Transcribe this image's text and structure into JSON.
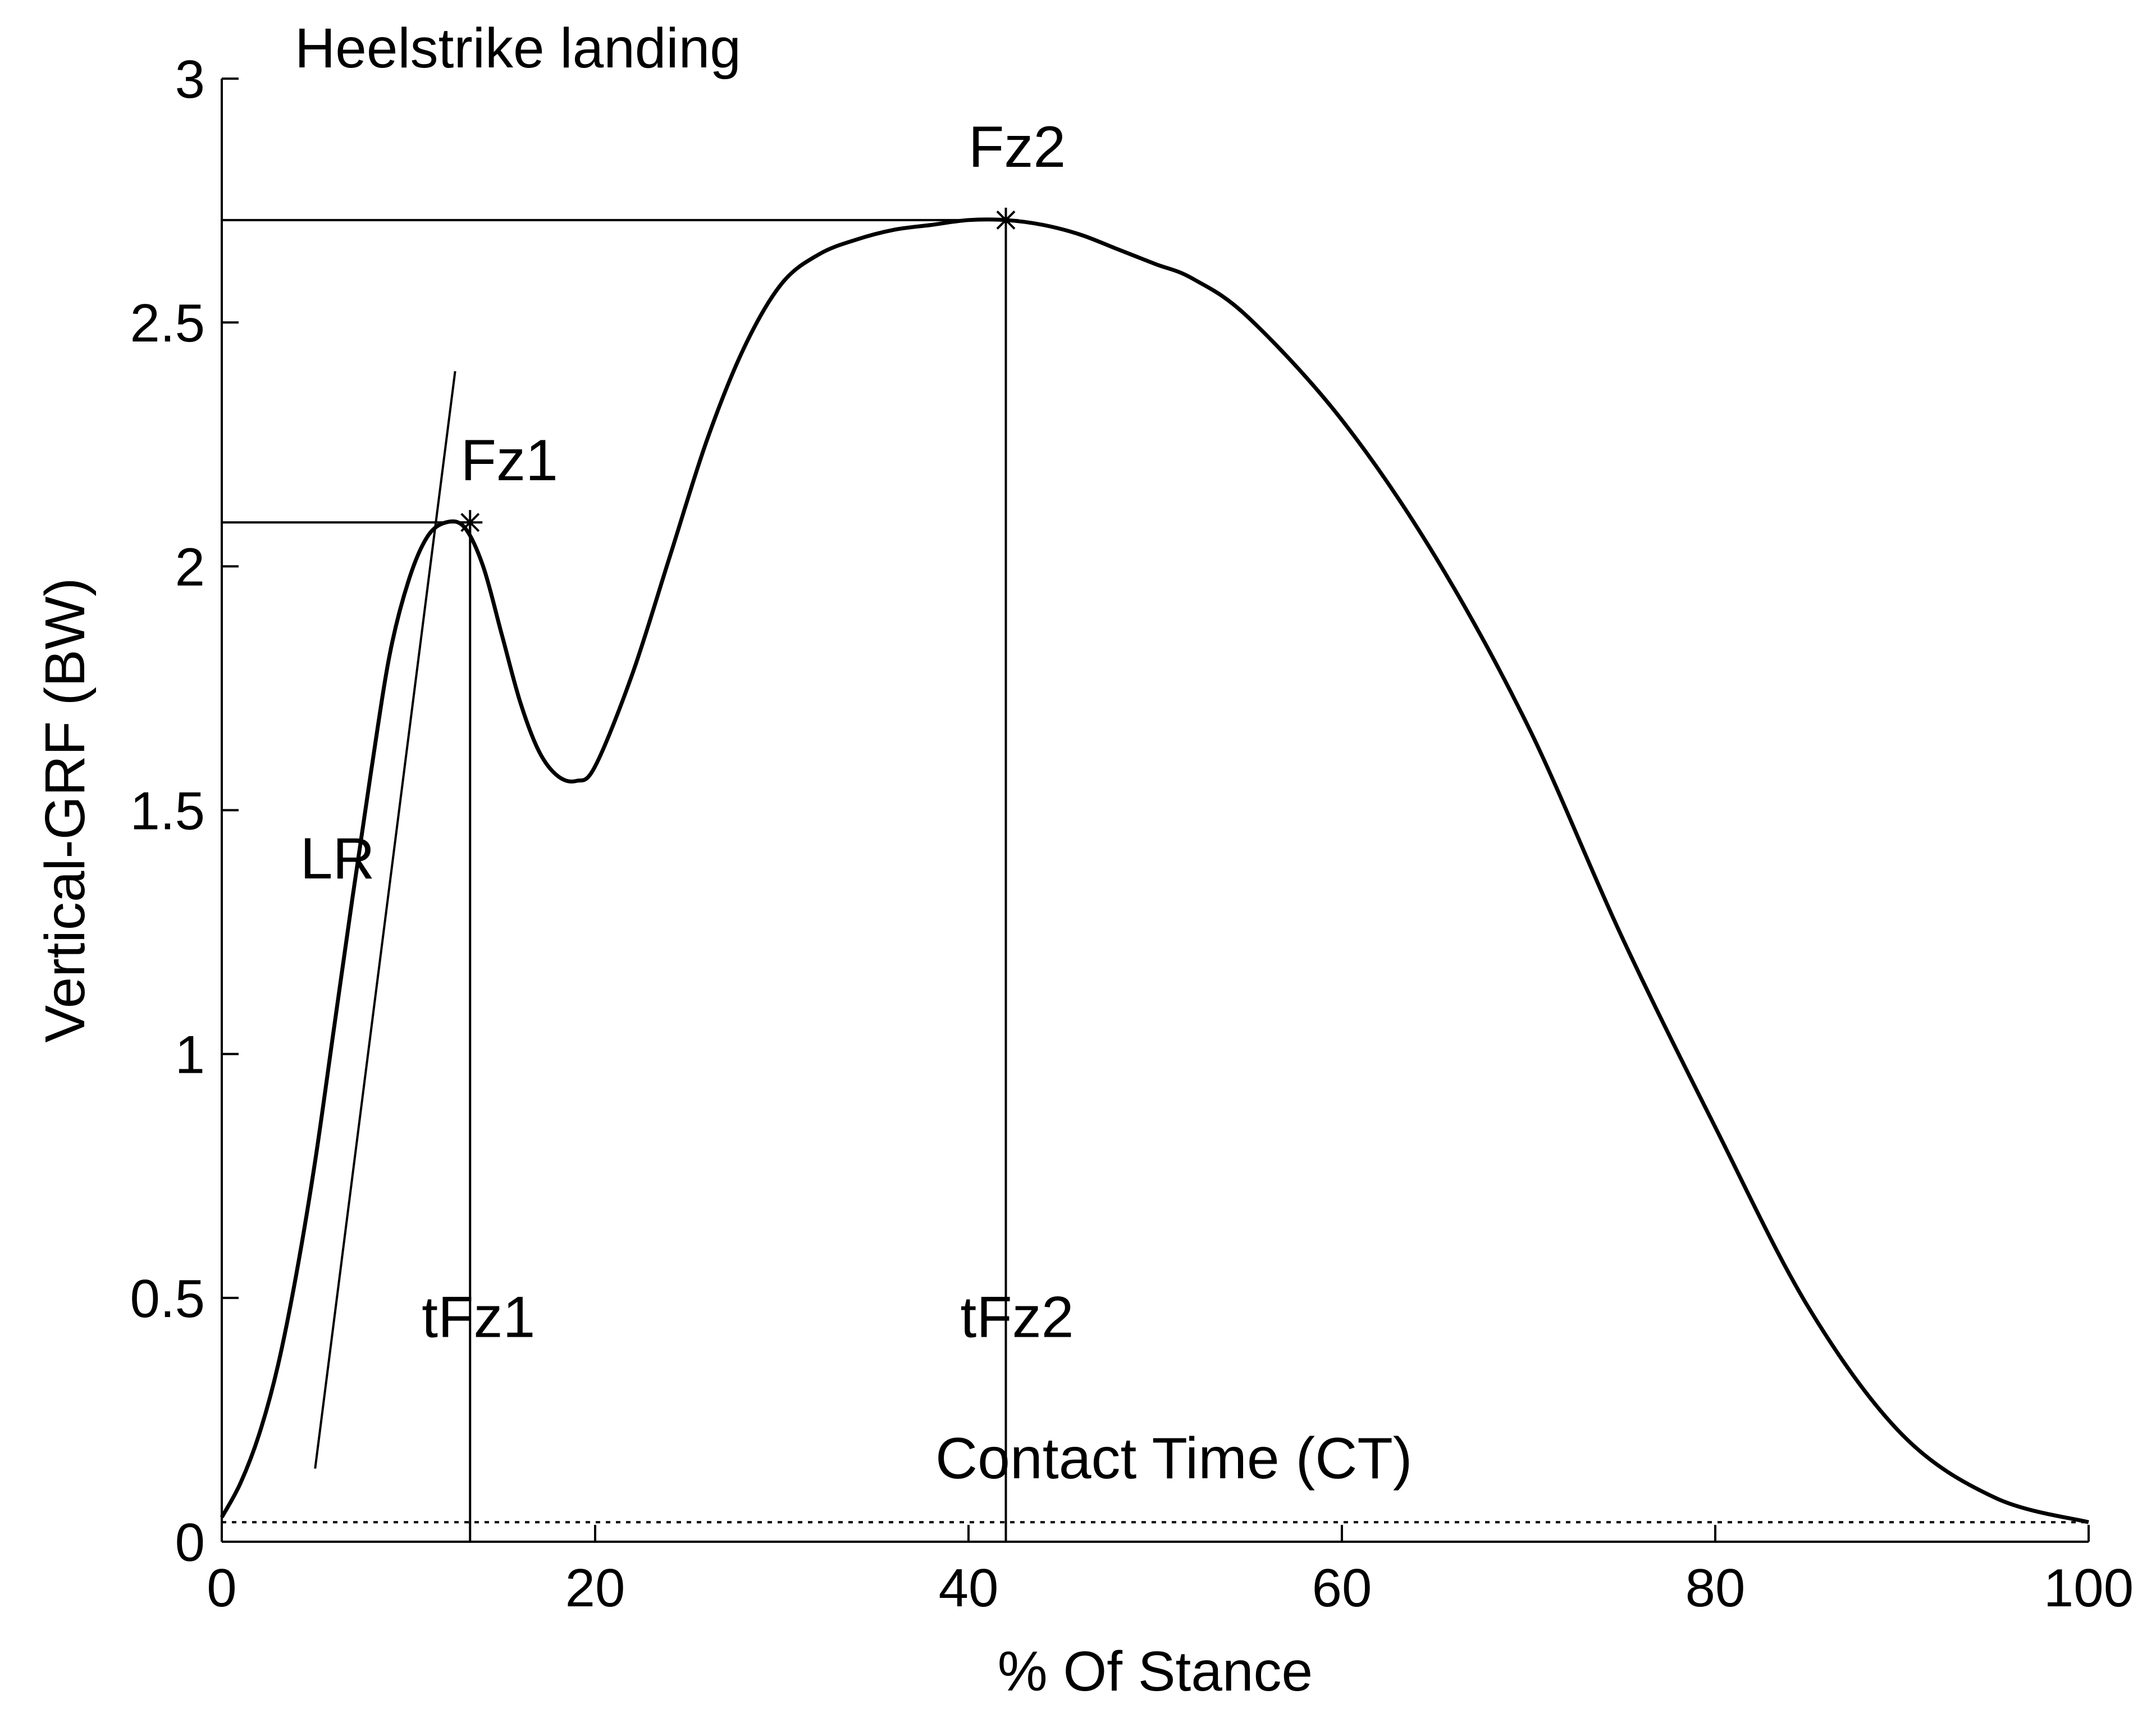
{
  "chart_data": {
    "type": "line",
    "title": "Heelstrike landing",
    "xlabel": "% Of Stance",
    "ylabel": "Vertical-GRF (BW)",
    "xlim": [
      0,
      100
    ],
    "ylim": [
      0,
      3
    ],
    "xticks": [
      0,
      20,
      40,
      60,
      80,
      100
    ],
    "xtick_labels": [
      "0",
      "20",
      "40",
      "60",
      "80",
      "100"
    ],
    "yticks": [
      0,
      0.5,
      1,
      1.5,
      2,
      2.5,
      3
    ],
    "ytick_labels": [
      "0",
      "0.5",
      "1",
      "1.5",
      "2",
      "2.5",
      "3"
    ],
    "grid": false,
    "series": [
      {
        "x": [
          0,
          1,
          2,
          3,
          4,
          5,
          6,
          7,
          8,
          9,
          10,
          11,
          12,
          13,
          14,
          15,
          16,
          17,
          18,
          19,
          20,
          22,
          24,
          26,
          28,
          30,
          32,
          34,
          36,
          38,
          40,
          42,
          44,
          46,
          48,
          50,
          52,
          55,
          60,
          65,
          70,
          75,
          80,
          85,
          90,
          95,
          100
        ],
        "y": [
          0.05,
          0.12,
          0.22,
          0.36,
          0.55,
          0.78,
          1.05,
          1.32,
          1.58,
          1.82,
          1.97,
          2.06,
          2.09,
          2.08,
          2.0,
          1.86,
          1.72,
          1.62,
          1.57,
          1.56,
          1.59,
          1.78,
          2.02,
          2.26,
          2.45,
          2.58,
          2.64,
          2.67,
          2.69,
          2.7,
          2.71,
          2.71,
          2.7,
          2.68,
          2.65,
          2.62,
          2.59,
          2.51,
          2.3,
          2.02,
          1.67,
          1.24,
          0.85,
          0.48,
          0.22,
          0.09,
          0.04
        ]
      }
    ],
    "contact_threshold": 0.04,
    "contact_label": "Contact Time (CT)",
    "peaks": [
      {
        "label": "Fz1",
        "time_label": "tFz1",
        "x": 13.3,
        "y": 2.09
      },
      {
        "label": "Fz2",
        "time_label": "tFz2",
        "x": 42.0,
        "y": 2.71
      }
    ],
    "loading_rate": {
      "label": "LR",
      "x": [
        5.0,
        12.5
      ],
      "y": [
        0.15,
        2.4
      ]
    }
  }
}
